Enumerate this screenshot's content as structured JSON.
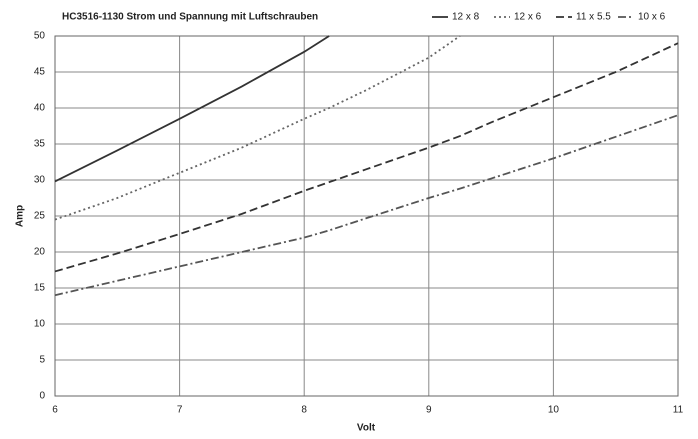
{
  "chart_data": {
    "type": "line",
    "title": "HC3516-1130   Strom und Spannung  mit Luftschrauben",
    "x_label": "Volt",
    "y_label": "Amp",
    "x": [
      6,
      6.5,
      7,
      7.5,
      8,
      8.2,
      8.5,
      9,
      9.25,
      9.5,
      10,
      10.5,
      11
    ],
    "series": [
      {
        "name": "12 x 8",
        "color": "#333333",
        "dash": "solid",
        "values": [
          29.8,
          34.1,
          38.5,
          43,
          47.8,
          50,
          null,
          null,
          null,
          null,
          null,
          null,
          null
        ]
      },
      {
        "name": "12 x 6",
        "color": "#666666",
        "dash": "dotted",
        "values": [
          24.5,
          27.5,
          31,
          34.5,
          38.5,
          40,
          42.5,
          47,
          50,
          null,
          null,
          null,
          null
        ]
      },
      {
        "name": "11 x 5.5",
        "color": "#333333",
        "dash": "dashed",
        "values": [
          17.3,
          19.8,
          22.5,
          25.3,
          28.5,
          29.7,
          31.5,
          34.5,
          36.1,
          38,
          41.5,
          45,
          49
        ]
      },
      {
        "name": "10 x 6",
        "color": "#555555",
        "dash": "dashdot",
        "values": [
          14,
          16,
          18,
          20,
          22,
          23,
          24.7,
          27.5,
          28.8,
          30.2,
          33,
          36,
          39
        ]
      }
    ],
    "xlim": [
      6,
      11
    ],
    "xticks": [
      6,
      7,
      8,
      9,
      10,
      11
    ],
    "ylim": [
      0,
      50
    ],
    "yticks": [
      0,
      5,
      10,
      15,
      20,
      25,
      30,
      35,
      40,
      45,
      50
    ],
    "grid": true,
    "legend": "top-right"
  }
}
